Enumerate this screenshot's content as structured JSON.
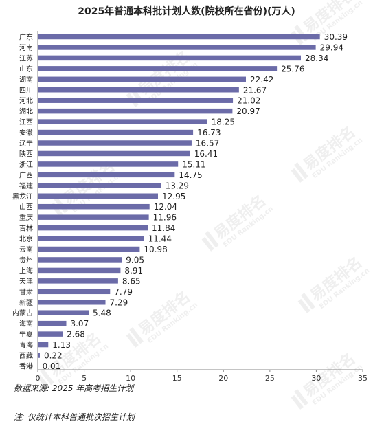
{
  "chart_data": {
    "type": "bar",
    "orientation": "horizontal",
    "title": "2025年普通本科批计划人数(院校所在省份)(万人)",
    "xlabel": "",
    "ylabel": "",
    "xlim": [
      0,
      35
    ],
    "xticks": [
      0,
      5,
      10,
      15,
      20,
      25,
      30,
      35
    ],
    "grid": false,
    "bar_color": "#6b6ba8",
    "categories": [
      "广东",
      "河南",
      "江苏",
      "山东",
      "湖南",
      "四川",
      "河北",
      "湖北",
      "江西",
      "安徽",
      "辽宁",
      "陕西",
      "浙江",
      "广西",
      "福建",
      "黑龙江",
      "山西",
      "重庆",
      "吉林",
      "北京",
      "云南",
      "贵州",
      "上海",
      "天津",
      "甘肃",
      "新疆",
      "内蒙古",
      "海南",
      "宁夏",
      "青海",
      "西藏",
      "香港"
    ],
    "values": [
      30.39,
      29.94,
      28.34,
      25.76,
      22.42,
      21.67,
      21.02,
      20.97,
      18.25,
      16.73,
      16.57,
      16.41,
      15.11,
      14.75,
      13.29,
      12.95,
      12.04,
      11.96,
      11.84,
      11.44,
      10.98,
      9.05,
      8.91,
      8.65,
      7.79,
      7.29,
      5.48,
      3.07,
      2.68,
      1.13,
      0.22,
      0.01
    ],
    "value_labels": [
      "30.39",
      "29.94",
      "28.34",
      "25.76",
      "22.42",
      "21.67",
      "21.02",
      "20.97",
      "18.25",
      "16.73",
      "16.57",
      "16.41",
      "15.11",
      "14.75",
      "13.29",
      "12.95",
      "12.04",
      "11.96",
      "11.84",
      "11.44",
      "10.98",
      "9.05",
      "8.91",
      "8.65",
      "7.79",
      "7.29",
      "5.48",
      "3.07",
      "2.68",
      "1.13",
      "0.22",
      "0.01"
    ]
  },
  "notes": {
    "source": "数据来源: 2025 年高考招生计划",
    "footnote": "注: 仅统计本科普通批次招生计划"
  },
  "watermark": {
    "brand": "易度排名",
    "sub": "EDU Ranking.cn"
  }
}
